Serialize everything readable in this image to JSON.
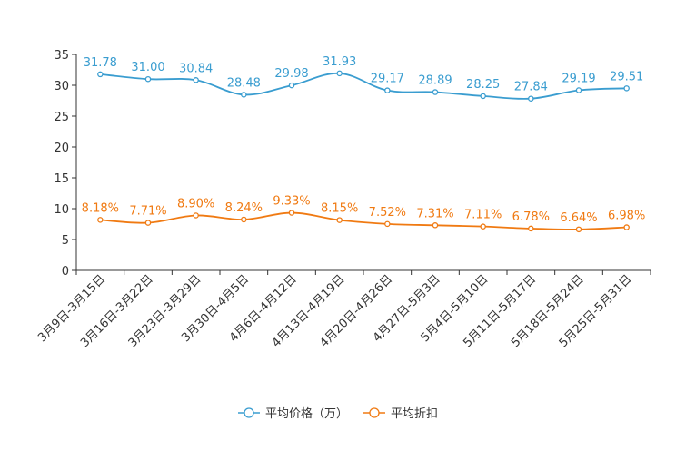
{
  "chart_data": {
    "type": "line",
    "title": "",
    "xlabel": "",
    "ylabel": "",
    "ylim": [
      0,
      35
    ],
    "yticks": [
      0,
      5,
      10,
      15,
      20,
      25,
      30,
      35
    ],
    "grid": false,
    "legend_position": "bottom-center",
    "categories": [
      "3月9日-3月15日",
      "3月16日-3月22日",
      "3月23日-3月29日",
      "3月30日-4月5日",
      "4月6日-4月12日",
      "4月13日-4月19日",
      "4月20日-4月26日",
      "4月27日-5月3日",
      "5月4日-5月10日",
      "5月11日-5月17日",
      "5月18日-5月24日",
      "5月25日-5月31日"
    ],
    "series": [
      {
        "name": "平均价格（万）",
        "color": "#3a9dd0",
        "values": [
          31.78,
          31.0,
          30.84,
          28.48,
          29.98,
          31.93,
          29.17,
          28.89,
          28.25,
          27.84,
          29.19,
          29.51
        ],
        "labels": [
          "31.78",
          "31.00",
          "30.84",
          "28.48",
          "29.98",
          "31.93",
          "29.17",
          "28.89",
          "28.25",
          "27.84",
          "29.19",
          "29.51"
        ]
      },
      {
        "name": "平均折扣",
        "color": "#f07a12",
        "values": [
          8.18,
          7.71,
          8.9,
          8.24,
          9.33,
          8.15,
          7.52,
          7.31,
          7.11,
          6.78,
          6.64,
          6.98
        ],
        "labels": [
          "8.18%",
          "7.71%",
          "8.90%",
          "8.24%",
          "9.33%",
          "8.15%",
          "7.52%",
          "7.31%",
          "7.11%",
          "6.78%",
          "6.64%",
          "6.98%"
        ]
      }
    ]
  }
}
